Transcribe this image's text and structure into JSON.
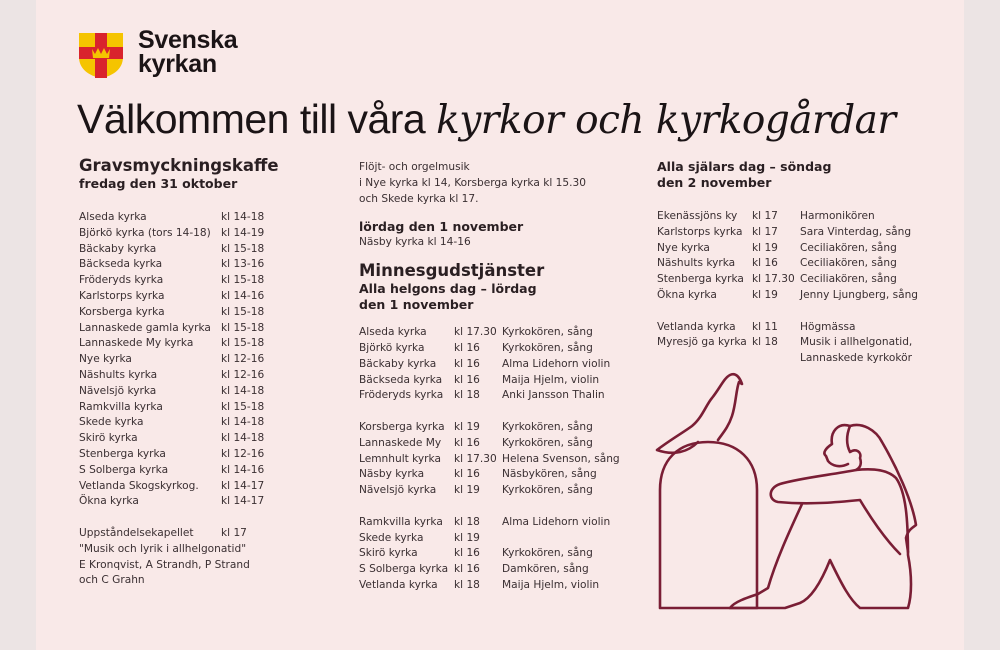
{
  "brand": {
    "line1": "Svenska",
    "line2": "kyrkan",
    "colors": {
      "shield_yellow": "#f5c400",
      "cross_red": "#d9232d"
    }
  },
  "title": {
    "regular": "Välkommen till våra ",
    "italic": "kyrkor och kyrkogårdar"
  },
  "accent_color": "#7a1e35",
  "col1": {
    "heading": "Gravsmyckningskaffe",
    "subheading": "fredag den 31 oktober",
    "rows": [
      [
        "Alseda kyrka",
        "kl 14-18"
      ],
      [
        "Björkö kyrka (tors 14-18)",
        "kl 14-19"
      ],
      [
        "Bäckaby kyrka",
        "kl 15-18"
      ],
      [
        "Bäckseda kyrka",
        "kl 13-16"
      ],
      [
        "Fröderyds kyrka",
        "kl 15-18"
      ],
      [
        "Karlstorps kyrka",
        "kl 14-16"
      ],
      [
        "Korsberga kyrka",
        "kl 15-18"
      ],
      [
        "Lannaskede gamla kyrka",
        "kl 15-18"
      ],
      [
        "Lannaskede My kyrka",
        "kl 15-18"
      ],
      [
        "Nye kyrka",
        "kl 12-16"
      ],
      [
        "Näshults kyrka",
        "kl 12-16"
      ],
      [
        "Nävelsjö kyrka",
        "kl 14-18"
      ],
      [
        "Ramkvilla kyrka",
        "kl 15-18"
      ],
      [
        "Skede kyrka",
        "kl 14-18"
      ],
      [
        "Skirö kyrka",
        "kl 14-18"
      ],
      [
        "Stenberga kyrka",
        "kl 12-16"
      ],
      [
        "S Solberga kyrka",
        "kl 14-16"
      ],
      [
        "Vetlanda Skogskyrkog.",
        "kl 14-17"
      ],
      [
        "Ökna kyrka",
        "kl 14-17"
      ]
    ],
    "extra": {
      "place": "Uppståndelsekapellet",
      "time": "kl 17",
      "lines": [
        "\"Musik och lyrik i allhelgonatid\"",
        "E Kronqvist, A Strandh, P Strand",
        "och C Grahn"
      ]
    }
  },
  "col2": {
    "music_lines": [
      "Flöjt- och orgelmusik",
      "i Nye kyrka kl 14, Korsberga kyrka kl 15.30",
      "och Skede kyrka kl 17."
    ],
    "saturday_heading": "lördag den 1 november",
    "saturday_text": "Näsby kyrka kl 14-16",
    "heading": "Minnesgudstjänster",
    "subheading1": "Alla helgons dag – lördag",
    "subheading2": "den 1 november",
    "groups": [
      [
        [
          "Alseda kyrka",
          "kl 17.30",
          "Kyrkokören, sång"
        ],
        [
          "Björkö kyrka",
          "kl 16",
          "Kyrkokören, sång"
        ],
        [
          "Bäckaby kyrka",
          "kl 16",
          "Alma Lidehorn violin"
        ],
        [
          "Bäckseda kyrka",
          "kl 16",
          "Maija Hjelm, violin"
        ],
        [
          "Fröderyds kyrka",
          "kl 18",
          "Anki Jansson Thalin"
        ]
      ],
      [
        [
          "Korsberga kyrka",
          "kl 19",
          "Kyrkokören, sång"
        ],
        [
          "Lannaskede My",
          "kl 16",
          "Kyrkokören, sång"
        ],
        [
          "Lemnhult kyrka",
          "kl 17.30",
          "Helena Svenson, sång"
        ],
        [
          "Näsby kyrka",
          "kl 16",
          "Näsbykören, sång"
        ],
        [
          "Nävelsjö kyrka",
          "kl 19",
          "Kyrkokören, sång"
        ]
      ],
      [
        [
          "Ramkvilla kyrka",
          "kl 18",
          "Alma Lidehorn violin"
        ],
        [
          "Skede kyrka",
          "kl 19",
          ""
        ],
        [
          "Skirö kyrka",
          "kl 16",
          "Kyrkokören, sång"
        ],
        [
          "S Solberga kyrka",
          "kl 16",
          "Damkören, sång"
        ],
        [
          "Vetlanda kyrka",
          "kl 18",
          "Maija Hjelm, violin"
        ]
      ]
    ]
  },
  "col3": {
    "heading1": "Alla själars dag – söndag",
    "heading2": "den 2 november",
    "groups": [
      [
        [
          "Ekenässjöns ky",
          "kl 17",
          "Harmonikören"
        ],
        [
          "Karlstorps kyrka",
          "kl 17",
          "Sara Vinterdag, sång"
        ],
        [
          "Nye kyrka",
          "kl 19",
          "Ceciliakören, sång"
        ],
        [
          "Näshults kyrka",
          "kl 16",
          "Ceciliakören, sång"
        ],
        [
          "Stenberga kyrka",
          "kl 17.30",
          "Ceciliakören, sång"
        ],
        [
          "Ökna kyrka",
          "kl 19",
          "Jenny Ljungberg, sång"
        ]
      ],
      [
        [
          "Vetlanda kyrka",
          "kl 11",
          "Högmässa"
        ],
        [
          "Myresjö ga kyrka",
          "kl 18",
          "Musik i allhelgonatid,"
        ],
        [
          "",
          "",
          "Lannaskede kyrkokör"
        ]
      ]
    ]
  }
}
